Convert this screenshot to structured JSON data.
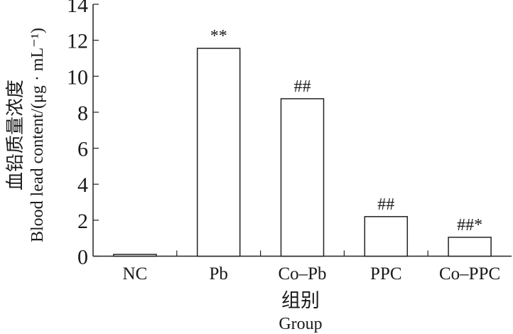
{
  "chart_data": {
    "type": "bar",
    "title": "",
    "categories": [
      "NC",
      "Pb",
      "Co-Pb",
      "PPC",
      "Co-PPC"
    ],
    "values": [
      0.1,
      11.55,
      8.75,
      2.2,
      1.05
    ],
    "annotations": [
      "",
      "**",
      "##",
      "##",
      "##*"
    ],
    "xlabel_cn": "组别",
    "xlabel": "Group",
    "ylabel_cn": "血铅质量浓度",
    "ylabel": "Blood lead content/(μg · mL⁻¹)",
    "ylim": [
      0,
      14
    ],
    "yticks": [
      0,
      2,
      4,
      6,
      8,
      10,
      12,
      14
    ],
    "grid": false,
    "legend": "none"
  }
}
